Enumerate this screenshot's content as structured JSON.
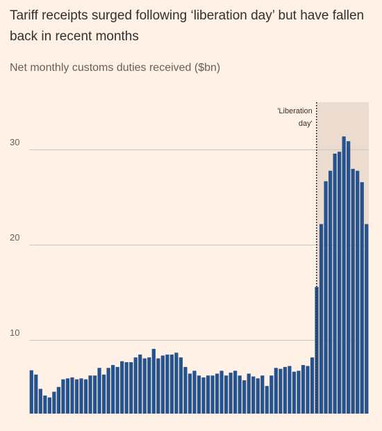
{
  "chart_data": {
    "type": "bar",
    "title": "Tariff receipts surged following ‘liberation day’ but have fallen back in recent months",
    "subtitle": "Net monthly customs duties received ($bn)",
    "values": [
      6.85,
      6.4,
      4.9,
      4.2,
      4.0,
      4.6,
      5.1,
      5.9,
      6.0,
      6.1,
      5.9,
      6.0,
      5.9,
      6.3,
      6.3,
      7.1,
      6.4,
      7.1,
      7.4,
      7.2,
      7.8,
      7.7,
      7.7,
      8.2,
      8.5,
      8.1,
      8.2,
      9.1,
      8.1,
      8.4,
      8.5,
      8.5,
      8.7,
      8.2,
      7.2,
      6.5,
      6.8,
      6.3,
      6.1,
      6.3,
      6.3,
      6.5,
      6.8,
      6.3,
      6.6,
      6.8,
      6.3,
      5.8,
      6.5,
      6.2,
      6.0,
      6.3,
      5.2,
      6.3,
      7.1,
      7.0,
      7.2,
      7.3,
      6.7,
      6.8,
      7.4,
      7.3,
      8.2,
      15.6,
      22.2,
      26.7,
      27.8,
      29.6,
      29.8,
      31.4,
      30.9,
      28.0,
      27.8,
      26.6,
      22.2
    ],
    "color": "#26538d",
    "ylim": [
      2.3,
      35
    ],
    "yticks": [
      10,
      20,
      30
    ],
    "grid": true,
    "annotation": {
      "lines": [
        "'Liberation",
        "day'"
      ],
      "index": 63,
      "shade": "#ecdcd0"
    }
  }
}
